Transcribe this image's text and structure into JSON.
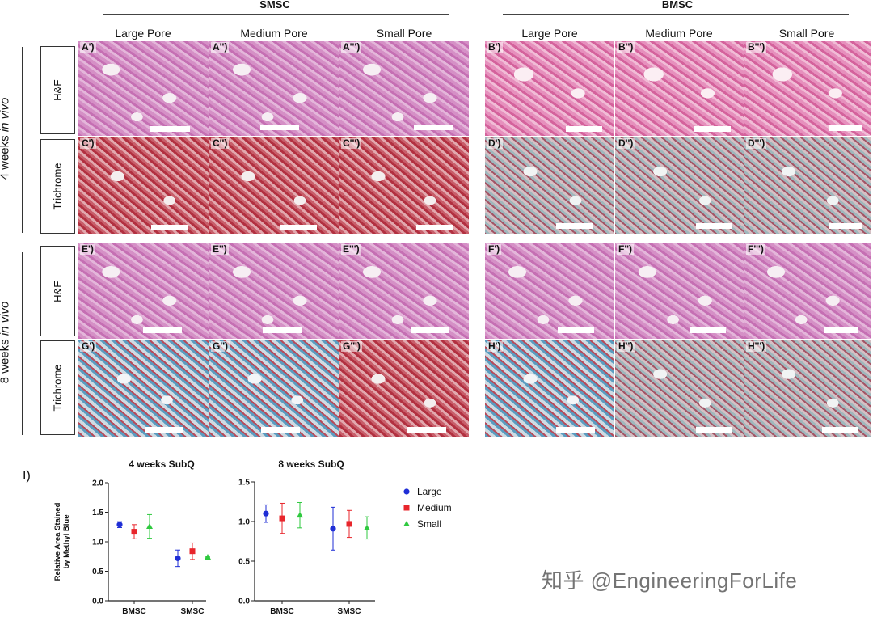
{
  "groups": [
    {
      "name": "SMSC",
      "columns": [
        "Large Pore",
        "Medium Pore",
        "Small Pore"
      ]
    },
    {
      "name": "BMSC",
      "columns": [
        "Large Pore",
        "Medium Pore",
        "Small Pore"
      ]
    }
  ],
  "timepoints": [
    {
      "prefix": "4 weeks ",
      "italic": "in vivo",
      "stains": [
        "H&E",
        "Trichrome"
      ]
    },
    {
      "prefix": "8 weeks ",
      "italic": "in vivo",
      "stains": [
        "H&E",
        "Trichrome"
      ]
    }
  ],
  "panel_labels": [
    [
      "A')",
      "A'')",
      "A''')",
      "B')",
      "B'')",
      "B''')"
    ],
    [
      "C')",
      "C'')",
      "C''')",
      "D')",
      "D'')",
      "D''')"
    ],
    [
      "E')",
      "E'')",
      "E''')",
      "F')",
      "F'')",
      "F''')"
    ],
    [
      "G')",
      "G'')",
      "G''')",
      "H')",
      "H'')",
      "H''')"
    ]
  ],
  "panel_i_label": "I)",
  "chart_data": [
    {
      "type": "scatter",
      "title": "4 weeks  SubQ",
      "ylabel": "Relative  Area Stained by Methyl Blue",
      "categories": [
        "BMSC",
        "SMSC"
      ],
      "ylim": [
        0.0,
        2.0
      ],
      "yticks": [
        "0.0",
        "0.5",
        "1.0",
        "1.5",
        "2.0"
      ],
      "series": [
        {
          "name": "Large",
          "color": "#1f2ed6",
          "marker": "circle",
          "values": [
            1.29,
            0.72
          ],
          "err": [
            0.05,
            0.14
          ]
        },
        {
          "name": "Medium",
          "color": "#e8252b",
          "marker": "square",
          "values": [
            1.17,
            0.84
          ],
          "err": [
            0.12,
            0.14
          ]
        },
        {
          "name": "Small",
          "color": "#2fc93f",
          "marker": "triangle",
          "values": [
            1.26,
            0.74
          ],
          "err": [
            0.2,
            0.01
          ]
        }
      ]
    },
    {
      "type": "scatter",
      "title": "8 weeks  SubQ",
      "categories": [
        "BMSC",
        "SMSC"
      ],
      "ylim": [
        0.0,
        1.5
      ],
      "yticks": [
        "0.0",
        "0.5",
        "1.0",
        "1.5"
      ],
      "series": [
        {
          "name": "Large",
          "color": "#1f2ed6",
          "marker": "circle",
          "values": [
            1.1,
            0.91
          ],
          "err": [
            0.11,
            0.27
          ]
        },
        {
          "name": "Medium",
          "color": "#e8252b",
          "marker": "square",
          "values": [
            1.04,
            0.97
          ],
          "err": [
            0.19,
            0.17
          ]
        },
        {
          "name": "Small",
          "color": "#2fc93f",
          "marker": "triangle",
          "values": [
            1.08,
            0.92
          ],
          "err": [
            0.16,
            0.14
          ]
        }
      ]
    }
  ],
  "legend": [
    {
      "label": "Large",
      "color": "#1f2ed6",
      "marker": "circle"
    },
    {
      "label": "Medium",
      "color": "#e8252b",
      "marker": "square"
    },
    {
      "label": "Small",
      "color": "#2fc93f",
      "marker": "triangle"
    }
  ],
  "watermark": "知乎 @EngineeringForLife"
}
